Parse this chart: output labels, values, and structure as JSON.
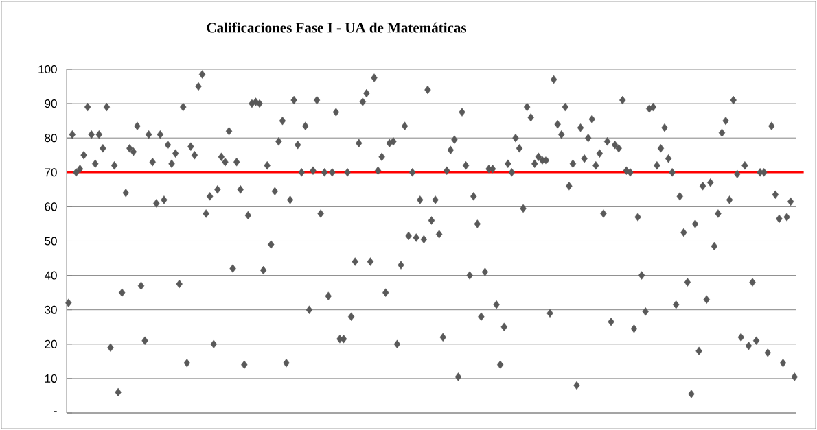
{
  "chart_data": {
    "type": "scatter",
    "title": "Calificaciones Fase I - UA de Matemáticas",
    "categories": [
      null,
      null,
      null,
      null,
      null,
      null,
      null,
      null,
      null,
      null,
      null,
      null,
      null,
      null,
      null,
      null,
      null,
      null,
      null,
      null,
      null,
      null,
      null,
      null,
      null,
      null,
      null,
      null,
      null,
      null,
      null,
      null,
      null,
      null,
      null,
      null,
      null,
      null,
      null,
      null,
      null,
      null,
      null,
      null,
      null,
      null,
      null,
      null,
      null,
      null,
      null,
      null,
      null,
      null,
      null,
      null,
      null,
      null,
      null,
      null,
      null,
      null,
      null,
      null,
      null,
      null,
      null,
      null,
      null,
      null,
      null,
      null,
      null,
      null,
      null,
      null,
      null,
      null,
      null,
      null,
      null,
      null,
      null,
      null,
      null,
      null,
      null,
      null,
      null,
      null,
      null,
      null,
      null,
      null,
      null,
      null,
      null,
      null,
      null,
      null,
      null,
      null,
      null,
      null,
      null,
      null,
      null,
      null,
      null,
      null,
      null,
      null,
      null,
      null,
      null,
      null,
      null,
      null,
      null,
      null,
      null,
      null,
      null,
      null,
      null,
      null,
      null,
      null,
      null,
      null,
      null,
      null,
      null,
      null,
      null,
      null,
      null,
      null,
      null,
      null,
      null,
      null,
      null,
      null,
      null,
      null,
      null,
      null,
      null,
      null,
      null,
      null,
      null,
      null,
      null,
      null,
      null,
      null,
      null,
      null,
      null,
      null,
      null,
      null,
      null,
      null,
      null,
      null,
      null,
      null,
      null,
      null,
      null,
      null,
      null,
      null,
      null,
      null,
      null,
      null,
      null,
      null,
      null,
      null,
      null,
      null,
      null,
      null,
      null,
      null,
      null
    ],
    "values": [
      32,
      81,
      70,
      71,
      75,
      89,
      81,
      72.5,
      81,
      77,
      89,
      19,
      72,
      6,
      35,
      64,
      77,
      76,
      83.5,
      37,
      21,
      81,
      73,
      61,
      81,
      62,
      78,
      72.5,
      75.5,
      37.5,
      89,
      14.5,
      77.5,
      75,
      95,
      98.5,
      58,
      63,
      20,
      65,
      74.5,
      73,
      82,
      42,
      73,
      65,
      14,
      57.5,
      90,
      90.5,
      90,
      41.5,
      72,
      49,
      64.5,
      79,
      85,
      14.5,
      62,
      91,
      78,
      70,
      83.5,
      30,
      70.5,
      91,
      58,
      70,
      34,
      70,
      87.5,
      21.5,
      21.5,
      70,
      28,
      44,
      78.5,
      90.5,
      93,
      44,
      97.5,
      70.5,
      74.5,
      35,
      78.5,
      79,
      20,
      43,
      83.5,
      51.5,
      70,
      51,
      62,
      50.5,
      94,
      56,
      62,
      52,
      22,
      70.5,
      76.5,
      79.5,
      10.5,
      87.5,
      72,
      40,
      63,
      55,
      28,
      41,
      71,
      71,
      31.5,
      14,
      25,
      72.5,
      70,
      80,
      77,
      59.5,
      89,
      86,
      72.5,
      74.5,
      73.5,
      73.5,
      29,
      97,
      84,
      81,
      89,
      66,
      72.5,
      8,
      83,
      74,
      80,
      85.5,
      72,
      75.5,
      58,
      79,
      26.5,
      78,
      77,
      91,
      70.5,
      70,
      24.5,
      57,
      40,
      29.5,
      88.5,
      89,
      72,
      77,
      83,
      74,
      70,
      31.5,
      63,
      52.5,
      38,
      5.5,
      55,
      18,
      66,
      33,
      67,
      48.5,
      58,
      81.5,
      85,
      62,
      91,
      69.5,
      22,
      72,
      19.5,
      38,
      21,
      70,
      70,
      17.5,
      83.5,
      63.5,
      56.5,
      14.5,
      57,
      61.5,
      10.5
    ],
    "color": "#595959",
    "marker": "diamond",
    "ylim": [
      0,
      100
    ],
    "yticks": [
      {
        "value": 0,
        "label": "-"
      },
      10,
      20,
      30,
      40,
      50,
      60,
      70,
      80,
      90,
      100
    ],
    "ref_lines": [
      {
        "axis": "y",
        "value": 70,
        "color": "#ff0000"
      }
    ],
    "grid": "y",
    "tick_labels": "y"
  }
}
